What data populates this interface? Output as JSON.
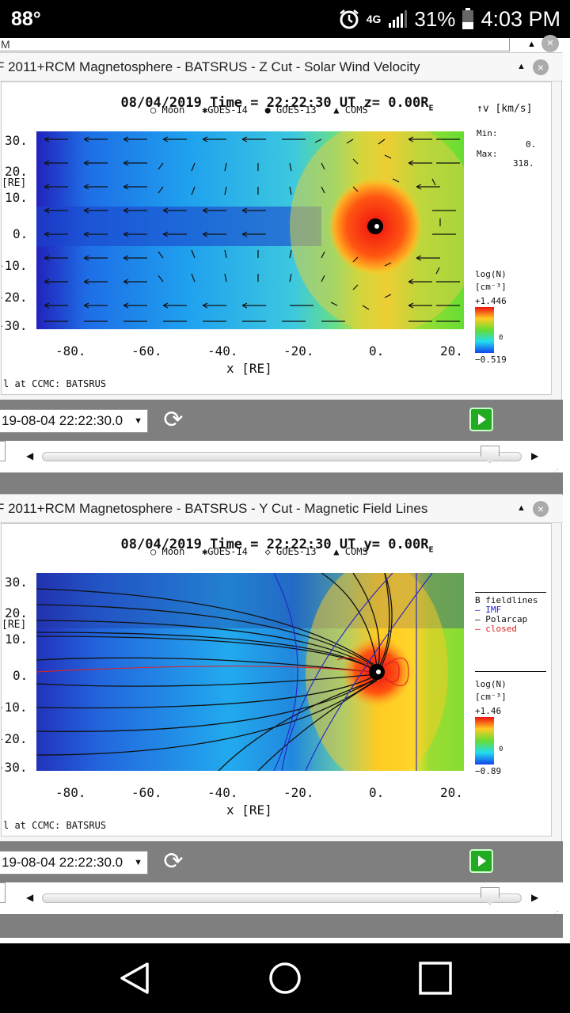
{
  "status": {
    "temperature": "88°",
    "network": "4G",
    "battery": "31%",
    "time": "4:03 PM"
  },
  "topbar": {
    "field_text": "M"
  },
  "panel1": {
    "title": "F 2011+RCM Magnetosphere - BATSRUS - Z Cut - Solar Wind Velocity",
    "plot_title": "08/04/2019 Time = 22:22:30 UT z= 0.00R",
    "plot_title_sub": "E",
    "legend": [
      "Moon",
      "GOES-14",
      "GOES-13",
      "COMS"
    ],
    "velocity_unit_label": "↑v [km/s]",
    "min_label": "Min:",
    "min_value": "0.",
    "max_label": "Max:",
    "max_value": "318.",
    "colorbar_label1": "log(N)",
    "colorbar_label2": "[cm⁻³]",
    "colorbar_max": "+1.446",
    "colorbar_mid": "0",
    "colorbar_min": "−0.519",
    "y_ticks": [
      "30.",
      "20.",
      "10.",
      "0.",
      "-10.",
      "-20.",
      "-30."
    ],
    "y_axis_label": "[RE]",
    "x_ticks": [
      "-80.",
      "-60.",
      "-40.",
      "-20.",
      "0.",
      "20."
    ],
    "x_axis_label": "x [RE]",
    "credit": "l at CCMC: BATSRUS",
    "time_value": "19-08-04 22:22:30.0",
    "slider_position": 0.93
  },
  "panel2": {
    "title": "F 2011+RCM Magnetosphere - BATSRUS - Y Cut - Magnetic Field Lines",
    "plot_title": "08/04/2019 Time = 22:22:30 UT y= 0.00R",
    "plot_title_sub": "E",
    "legend": [
      "Moon",
      "GOES-14",
      "GOES-13",
      "COMS"
    ],
    "fieldlines_title": "B fieldlines",
    "fieldlines": [
      {
        "name": "IMF",
        "color": "#2222cc"
      },
      {
        "name": "Polarcap",
        "color": "#111111"
      },
      {
        "name": "closed",
        "color": "#dd2222"
      }
    ],
    "colorbar_label1": "log(N)",
    "colorbar_label2": "[cm⁻³]",
    "colorbar_max": "+1.46",
    "colorbar_mid": "0",
    "colorbar_min": "−0.89",
    "y_ticks": [
      "30.",
      "20.",
      "10.",
      "0.",
      "-10.",
      "-20.",
      "-30."
    ],
    "y_axis_label": "[RE]",
    "x_ticks": [
      "-80.",
      "-60.",
      "-40.",
      "-20.",
      "0.",
      "20."
    ],
    "x_axis_label": "x [RE]",
    "credit": "l at CCMC: BATSRUS",
    "time_value": "19-08-04 22:22:30.0",
    "slider_position": 0.93
  }
}
